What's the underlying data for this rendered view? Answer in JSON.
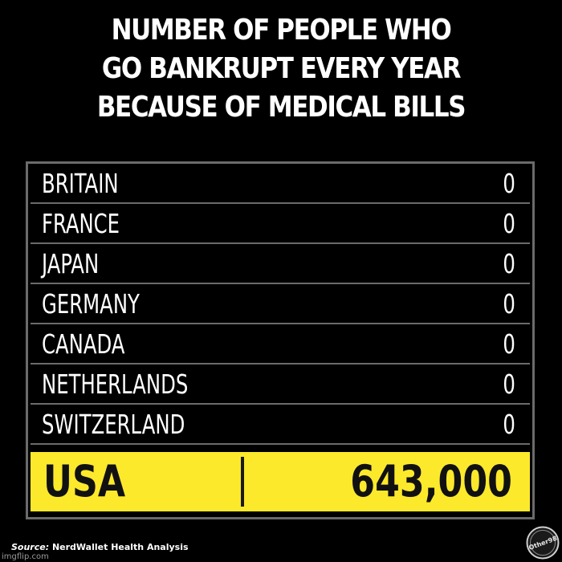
{
  "title_lines": [
    "NUMBER OF PEOPLE WHO",
    "GO BANKRUPT EVERY YEAR",
    "BECAUSE OF MEDICAL BILLS"
  ],
  "chart_data": {
    "type": "table",
    "title": "NUMBER OF PEOPLE WHO GO BANKRUPT EVERY YEAR BECAUSE OF MEDICAL BILLS",
    "rows": [
      {
        "country": "BRITAIN",
        "value": "0"
      },
      {
        "country": "FRANCE",
        "value": "0"
      },
      {
        "country": "JAPAN",
        "value": "0"
      },
      {
        "country": "GERMANY",
        "value": "0"
      },
      {
        "country": "CANADA",
        "value": "0"
      },
      {
        "country": "NETHERLANDS",
        "value": "0"
      },
      {
        "country": "SWITZERLAND",
        "value": "0"
      }
    ],
    "highlight": {
      "country": "USA",
      "value": "643,000"
    },
    "colors": {
      "background": "#000000",
      "text": "#ffffff",
      "grid": "#6b6b6b",
      "highlight_fill": "#fde92b",
      "highlight_text": "#111111"
    }
  },
  "source": {
    "label": "Source:",
    "text": "NerdWallet Health Analysis"
  },
  "watermark": "imgflip.com",
  "logo_text": "Other98",
  "icons": {
    "logo": "other98-logo-icon"
  }
}
